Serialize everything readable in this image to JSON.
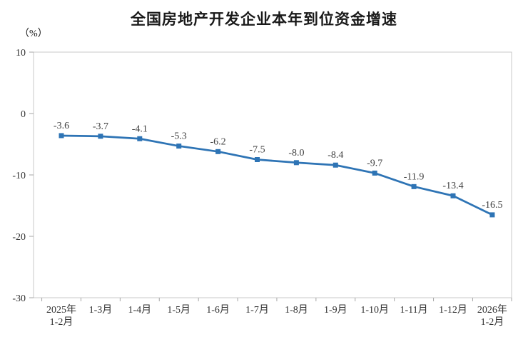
{
  "chart_data": {
    "type": "line",
    "title": "全国房地产开发企业本年到位资金增速",
    "unit": "（%）",
    "categories": [
      "2025年\n1-2月",
      "1-3月",
      "1-4月",
      "1-5月",
      "1-6月",
      "1-7月",
      "1-8月",
      "1-9月",
      "1-10月",
      "1-11月",
      "1-12月",
      "2026年\n1-2月"
    ],
    "values": [
      -3.6,
      -3.7,
      -4.1,
      -5.3,
      -6.2,
      -7.5,
      -8.0,
      -8.4,
      -9.7,
      -11.9,
      -13.4,
      -16.5
    ],
    "value_labels": [
      "-3.6",
      "-3.7",
      "-4.1",
      "-5.3",
      "-6.2",
      "-7.5",
      "-8.0",
      "-8.4",
      "-9.7",
      "-11.9",
      "-13.4",
      "-16.5"
    ],
    "ylim": [
      -30,
      10
    ],
    "yticks": [
      10,
      0,
      -10,
      -20,
      -30
    ],
    "grid": false,
    "legend_position": "none",
    "marker": "square",
    "colors": {
      "line": "#2E74B5",
      "marker": "#2E74B5",
      "data_label": "#404040",
      "axis_label": "#333333",
      "plot_border": "#C8C8C8",
      "tick": "#A6A6A6",
      "title": "#1A1A1A"
    }
  }
}
